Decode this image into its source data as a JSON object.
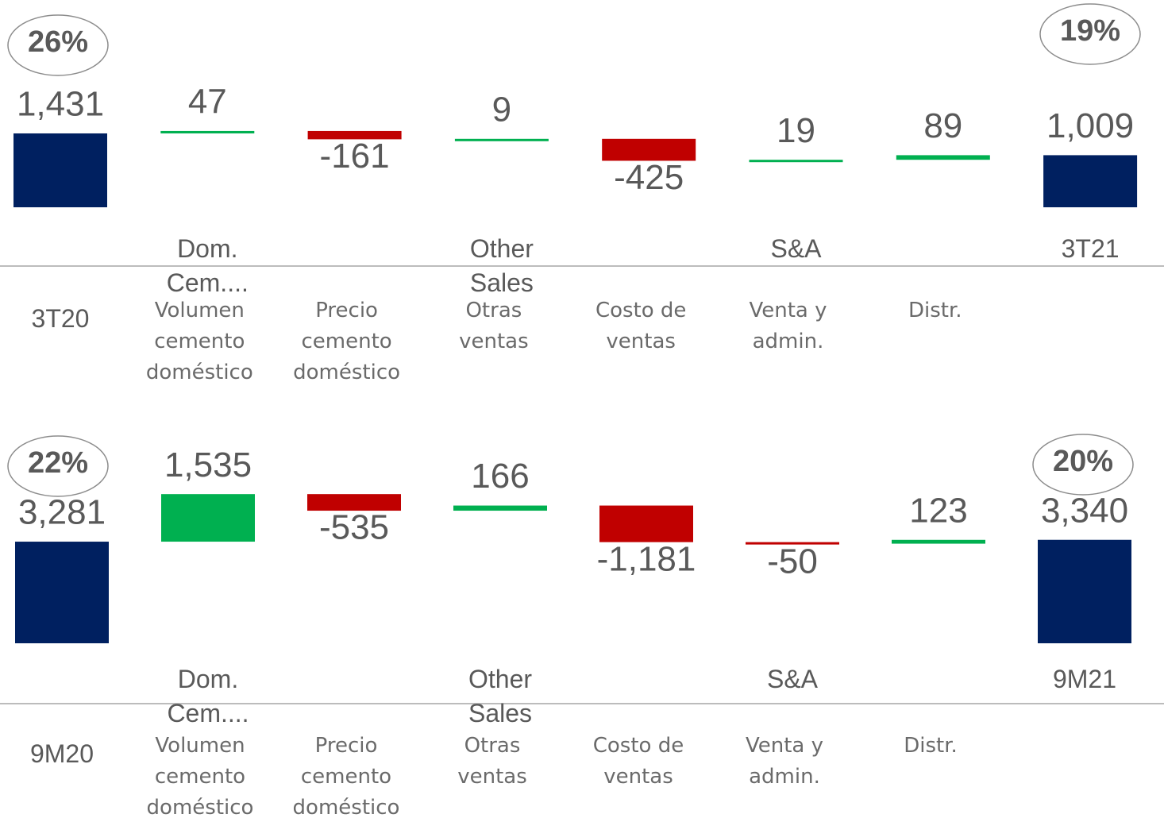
{
  "chart_data": [
    {
      "type": "waterfall",
      "categories": [
        "3T20",
        "Volumen cemento doméstico",
        "Precio cemento doméstico",
        "Otras ventas",
        "Costo de ventas",
        "Venta y admin.",
        "Distr.",
        null
      ],
      "axis_labels": [
        null,
        "Dom. Cem....",
        null,
        "Other Sales",
        null,
        "S&A",
        null,
        "3T21"
      ],
      "values": [
        1431,
        47,
        -161,
        9,
        -425,
        19,
        89,
        1009
      ],
      "value_labels": [
        "1,431",
        "47",
        "-161",
        "9",
        "-425",
        "19",
        "89",
        "1,009"
      ],
      "is_total": [
        true,
        false,
        false,
        false,
        false,
        false,
        false,
        true
      ],
      "margins": [
        26,
        19
      ],
      "margin_labels": [
        "26%",
        "19%"
      ],
      "ylim": [
        0,
        2000
      ],
      "colors": {
        "total": "#002060",
        "increase": "#00b050",
        "decrease": "#c00000"
      }
    },
    {
      "type": "waterfall",
      "categories": [
        "9M20",
        "Volumen cemento doméstico",
        "Precio cemento doméstico",
        "Otras ventas",
        "Costo de ventas",
        "Venta y admin.",
        "Distr.",
        null
      ],
      "axis_labels": [
        null,
        "Dom. Cem....",
        null,
        "Other Sales",
        null,
        "S&A",
        null,
        "9M21"
      ],
      "values": [
        3281,
        1535,
        -535,
        166,
        -1181,
        -50,
        123,
        3340
      ],
      "value_labels": [
        "3,281",
        "1,535",
        "-535",
        "166",
        "-1,181",
        "-50",
        "123",
        "3,340"
      ],
      "is_total": [
        true,
        false,
        false,
        false,
        false,
        false,
        false,
        true
      ],
      "margins": [
        22,
        20
      ],
      "margin_labels": [
        "22%",
        "20%"
      ],
      "ylim": [
        0,
        5000
      ],
      "colors": {
        "total": "#002060",
        "increase": "#00b050",
        "decrease": "#c00000"
      }
    }
  ]
}
